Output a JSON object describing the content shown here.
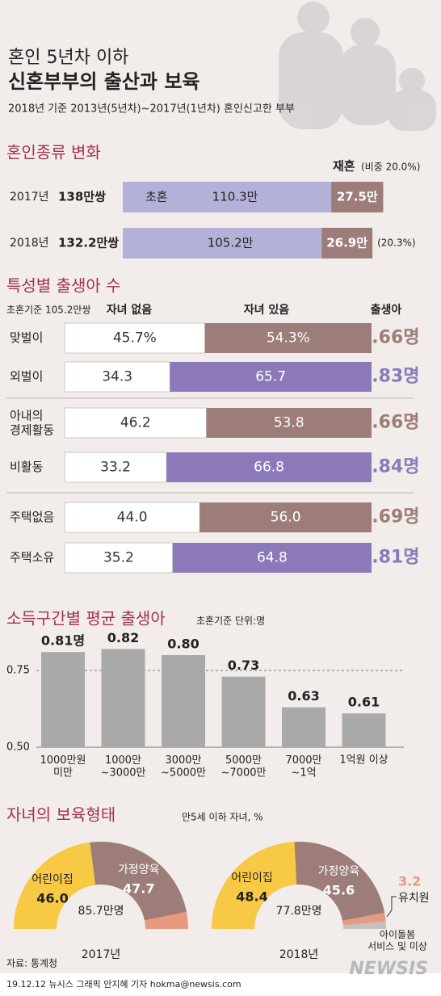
{
  "header": {
    "title_line1": "혼인 5년차 이하",
    "title_line2": "신혼부부의 출산과 보육",
    "subtitle": "2018년 기준 2013년(5년차)~2017년(1년차) 혼인신고한 부부"
  },
  "chart_data": [
    {
      "type": "stacked-hbar",
      "title": "혼인종류 변화",
      "categories": [
        "2017년",
        "2018년"
      ],
      "totals": [
        "138만쌍",
        "132.2만쌍"
      ],
      "share_labels": [
        "(비중 20.0%)",
        "(20.3%)"
      ],
      "series": [
        {
          "name": "초혼",
          "color": "#b4b1d8",
          "values": [
            110.3,
            105.2
          ],
          "value_labels": [
            "110.3만",
            "105.2만"
          ]
        },
        {
          "name": "재혼",
          "color": "#9c7d79",
          "values": [
            27.5,
            26.9
          ],
          "value_labels": [
            "27.5만",
            "26.9만"
          ]
        }
      ]
    },
    {
      "type": "percent-hbar",
      "title": "특성별 출생아 수",
      "subtitle": "초혼기준 105.2만쌍",
      "categories": [
        "맞벌이",
        "외벌이",
        "아내의\n경제활동",
        "비활동",
        "주택없음",
        "주택소유"
      ],
      "series": [
        {
          "name": "자녀 없음",
          "color": "#ffffff",
          "values": [
            45.7,
            34.3,
            46.2,
            33.2,
            44.0,
            35.2
          ],
          "value_labels": [
            "45.7%",
            "34.3",
            "46.2",
            "33.2",
            "44.0",
            "35.2"
          ]
        },
        {
          "name": "자녀 있음",
          "colors": [
            "#9c7d79",
            "#8b79ba",
            "#9c7d79",
            "#8b79ba",
            "#9c7d79",
            "#8b79ba"
          ],
          "values": [
            54.3,
            65.7,
            53.8,
            66.8,
            56.0,
            64.8
          ],
          "value_labels": [
            "54.3%",
            "65.7",
            "53.8",
            "66.8",
            "56.0",
            "64.8"
          ]
        }
      ],
      "births": {
        "name": "출생아",
        "values": [
          0.66,
          0.83,
          0.66,
          0.84,
          0.69,
          0.81
        ],
        "value_labels": [
          "0.66명",
          "0.83명",
          "0.66명",
          "0.84명",
          "0.69명",
          "0.81명"
        ]
      }
    },
    {
      "type": "bar",
      "title": "소득구간별 평균 출생아",
      "subtitle": "초혼기준 단위:명",
      "categories": [
        "1000만원\n미만",
        "1000만\n~3000만",
        "3000만\n~5000만",
        "5000만\n~7000만",
        "7000만\n~1억",
        "1억원 이상"
      ],
      "values": [
        0.81,
        0.82,
        0.8,
        0.73,
        0.63,
        0.61
      ],
      "value_labels": [
        "0.81명",
        "0.82",
        "0.80",
        "0.73",
        "0.63",
        "0.61"
      ],
      "color": "#a9a9a9",
      "ylim": [
        0.5,
        0.85
      ],
      "yticks": [
        {
          "value": 0.5,
          "label": "0.50"
        },
        0.75
      ]
    },
    {
      "type": "pie",
      "title": "자녀의 보육형태",
      "subtitle": "만5세 이하 자녀, %",
      "pies": [
        {
          "label": "2017년",
          "total": "85.7만명",
          "categories": [
            "어린이집",
            "가정양육"
          ],
          "values": [
            46.0,
            47.7
          ],
          "value_labels": [
            "46.0",
            "47.7"
          ],
          "colors": [
            "#f8c945",
            "#9c7d79"
          ]
        },
        {
          "label": "2018년",
          "total": "77.8만명",
          "categories": [
            "어린이집",
            "가정양육",
            "유치원"
          ],
          "values": [
            48.4,
            45.6,
            3.2
          ],
          "value_labels": [
            "48.4",
            "45.6",
            "3.2"
          ],
          "colors": [
            "#f8c945",
            "#9c7d79",
            "#e89a80"
          ],
          "note": "아이돌봄\n서비스 및 미상"
        }
      ]
    }
  ],
  "footer": {
    "source": "자료: 통계청",
    "credit": "19.12.12 뉴시스 그래픽 안지혜 기자 hokma@newsis.com",
    "logo": "NEWSIS"
  }
}
